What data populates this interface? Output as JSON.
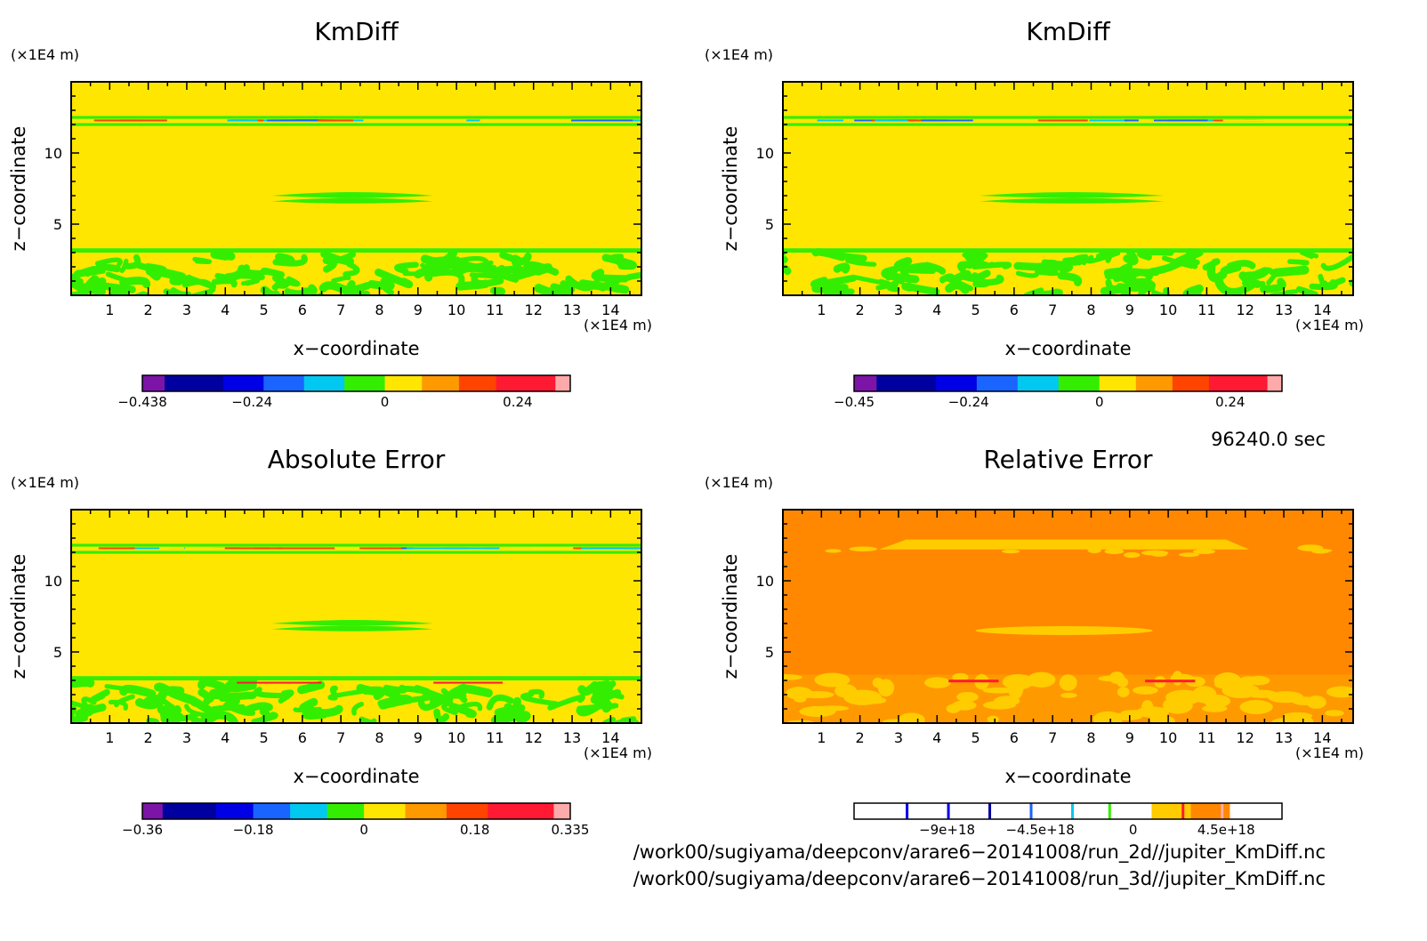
{
  "chart_data": [
    {
      "type": "heatmap",
      "title": "KmDiff",
      "xlabel": "x−coordinate",
      "ylabel": "z−coordinate",
      "x_unit": "(×1E4 m)",
      "y_unit": "(×1E4 m)",
      "x_ticks": [
        1,
        2,
        3,
        4,
        5,
        6,
        7,
        8,
        9,
        10,
        11,
        12,
        13,
        14
      ],
      "y_ticks": [
        5,
        10
      ],
      "xlim": [
        0,
        14.8
      ],
      "ylim": [
        0,
        15
      ],
      "background_color": "#ffe600",
      "colorbar": {
        "labels": [
          "−0.438",
          "−0.24",
          "0",
          "0.24"
        ],
        "label_values": [
          -0.438,
          -0.24,
          0,
          0.24
        ],
        "range": [
          -0.438,
          0.335
        ],
        "colors": [
          "#7d14a8",
          "#0000a0",
          "#0000e6",
          "#1a64ff",
          "#00c8f0",
          "#33ee00",
          "#ffe600",
          "#ff9900",
          "#ff4400",
          "#ff1a33",
          "#ffaaaa"
        ]
      }
    },
    {
      "type": "heatmap",
      "title": "KmDiff",
      "xlabel": "x−coordinate",
      "ylabel": "z−coordinate",
      "x_unit": "(×1E4 m)",
      "y_unit": "(×1E4 m)",
      "x_ticks": [
        1,
        2,
        3,
        4,
        5,
        6,
        7,
        8,
        9,
        10,
        11,
        12,
        13,
        14
      ],
      "y_ticks": [
        5,
        10
      ],
      "xlim": [
        0,
        14.8
      ],
      "ylim": [
        0,
        15
      ],
      "background_color": "#ffe600",
      "colorbar": {
        "labels": [
          "−0.45",
          "−0.24",
          "0",
          "0.24"
        ],
        "label_values": [
          -0.45,
          -0.24,
          0,
          0.24
        ],
        "range": [
          -0.45,
          0.335
        ],
        "colors": [
          "#7d14a8",
          "#0000a0",
          "#0000e6",
          "#1a64ff",
          "#00c8f0",
          "#33ee00",
          "#ffe600",
          "#ff9900",
          "#ff4400",
          "#ff1a33",
          "#ffaaaa"
        ]
      }
    },
    {
      "type": "heatmap",
      "title": "Absolute Error",
      "xlabel": "x−coordinate",
      "ylabel": "z−coordinate",
      "x_unit": "(×1E4 m)",
      "y_unit": "(×1E4 m)",
      "x_ticks": [
        1,
        2,
        3,
        4,
        5,
        6,
        7,
        8,
        9,
        10,
        11,
        12,
        13,
        14
      ],
      "y_ticks": [
        5,
        10
      ],
      "xlim": [
        0,
        14.8
      ],
      "ylim": [
        0,
        15
      ],
      "background_color": "#ffe600",
      "colorbar": {
        "labels": [
          "−0.36",
          "−0.18",
          "0",
          "0.18",
          "0.335"
        ],
        "label_values": [
          -0.36,
          -0.18,
          0,
          0.18,
          0.335
        ],
        "range": [
          -0.36,
          0.335
        ],
        "colors": [
          "#7d14a8",
          "#0000a0",
          "#0000e6",
          "#1a64ff",
          "#00c8f0",
          "#33ee00",
          "#ffe600",
          "#ff9900",
          "#ff4400",
          "#ff1a33",
          "#ffaaaa"
        ]
      }
    },
    {
      "type": "heatmap",
      "title": "Relative Error",
      "xlabel": "x−coordinate",
      "ylabel": "z−coordinate",
      "x_unit": "(×1E4 m)",
      "y_unit": "(×1E4 m)",
      "x_ticks": [
        1,
        2,
        3,
        4,
        5,
        6,
        7,
        8,
        9,
        10,
        11,
        12,
        13,
        14
      ],
      "y_ticks": [
        5,
        10
      ],
      "xlim": [
        0,
        14.8
      ],
      "ylim": [
        0,
        15
      ],
      "background_color": "#ff8800",
      "colorbar": {
        "labels": [
          "−9e+18",
          "−4.5e+18",
          "0",
          "4.5e+18"
        ],
        "label_values": [
          -9e+18,
          -4.5e+18,
          0,
          4.5e+18
        ],
        "range": [
          -1.35e+19,
          7.2e+18
        ],
        "colors": [
          "#7d14a8",
          "#0000a0",
          "#0000e6",
          "#1a64ff",
          "#00c8f0",
          "#33ee00",
          "#ffe600",
          "#ff9900",
          "#ff4400",
          "#ff1a33",
          "#ffaaaa"
        ]
      }
    }
  ],
  "time_label": "96240.0 sec",
  "footer": {
    "line1": "/work00/sugiyama/deepconv/arare6−20141008/run_2d//jupiter_KmDiff.nc",
    "line2": "/work00/sugiyama/deepconv/arare6−20141008/run_3d//jupiter_KmDiff.nc"
  }
}
